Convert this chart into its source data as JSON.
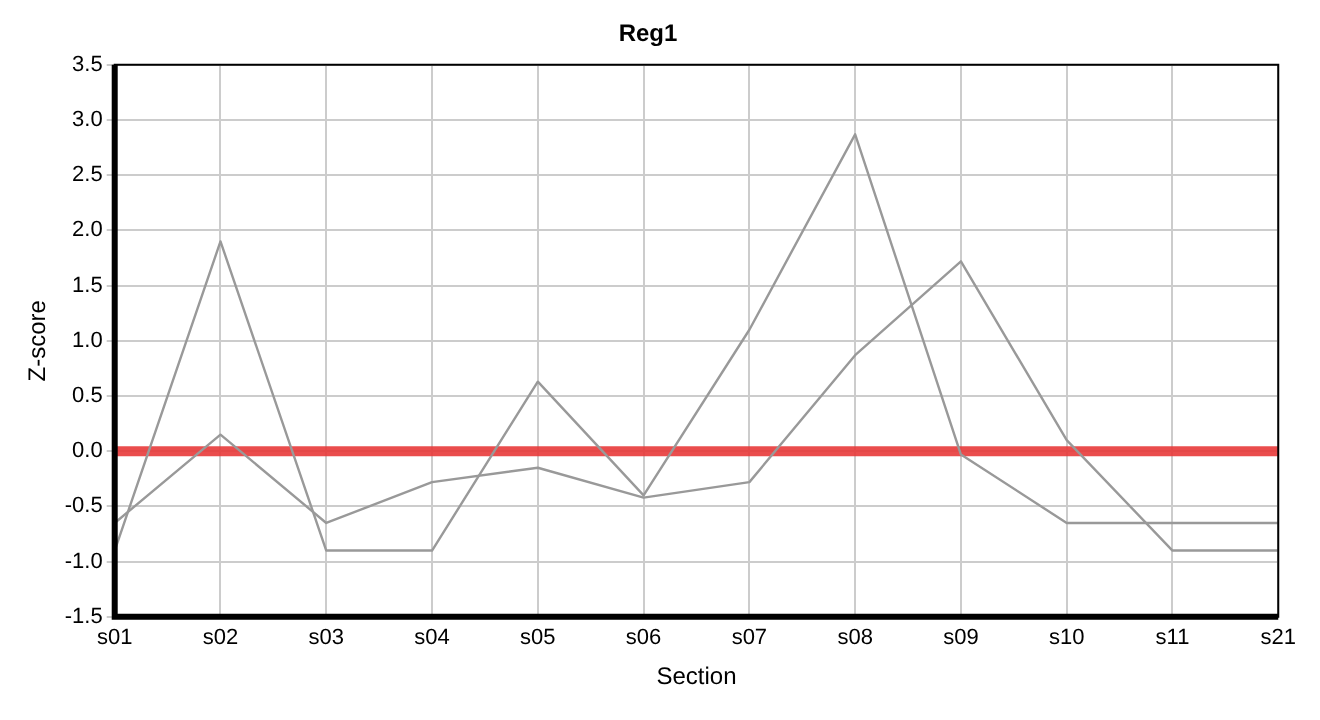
{
  "chart_data": {
    "type": "line",
    "title": "Reg1",
    "xlabel": "Section",
    "ylabel": "Z-score",
    "categories": [
      "s01",
      "s02",
      "s03",
      "s04",
      "s05",
      "s06",
      "s07",
      "s08",
      "s09",
      "s10",
      "s11",
      "s21"
    ],
    "series": [
      {
        "color": "#999999",
        "values": [
          -0.9,
          1.9,
          -0.9,
          -0.9,
          0.63,
          -0.4,
          1.1,
          2.87,
          -0.03,
          -0.65,
          -0.65,
          -0.65
        ]
      },
      {
        "color": "#999999",
        "values": [
          -0.65,
          0.15,
          -0.65,
          -0.28,
          -0.15,
          -0.42,
          -0.28,
          0.87,
          1.72,
          0.1,
          -0.9,
          -0.9
        ]
      }
    ],
    "ylim": [
      -1.5,
      3.5
    ],
    "yticks": [
      {
        "value": -1.5,
        "label": "-1.5"
      },
      {
        "value": -1,
        "label": "-1.0"
      },
      {
        "value": -0.5,
        "label": "-0.5"
      },
      {
        "value": 0,
        "label": "0.0"
      },
      {
        "value": 0.5,
        "label": "0.5"
      },
      {
        "value": 1,
        "label": "1.0"
      },
      {
        "value": 1.5,
        "label": "1.5"
      },
      {
        "value": 2,
        "label": "2.0"
      },
      {
        "value": 2.5,
        "label": "2.5"
      },
      {
        "value": 3,
        "label": "3.0"
      },
      {
        "value": 3.5,
        "label": "3.5"
      }
    ],
    "ref_lines": [
      {
        "axis": "y",
        "value": 0,
        "color": "#e83a3a"
      }
    ],
    "grid": true,
    "legend": false,
    "marker": "none",
    "line_style": "solid"
  }
}
